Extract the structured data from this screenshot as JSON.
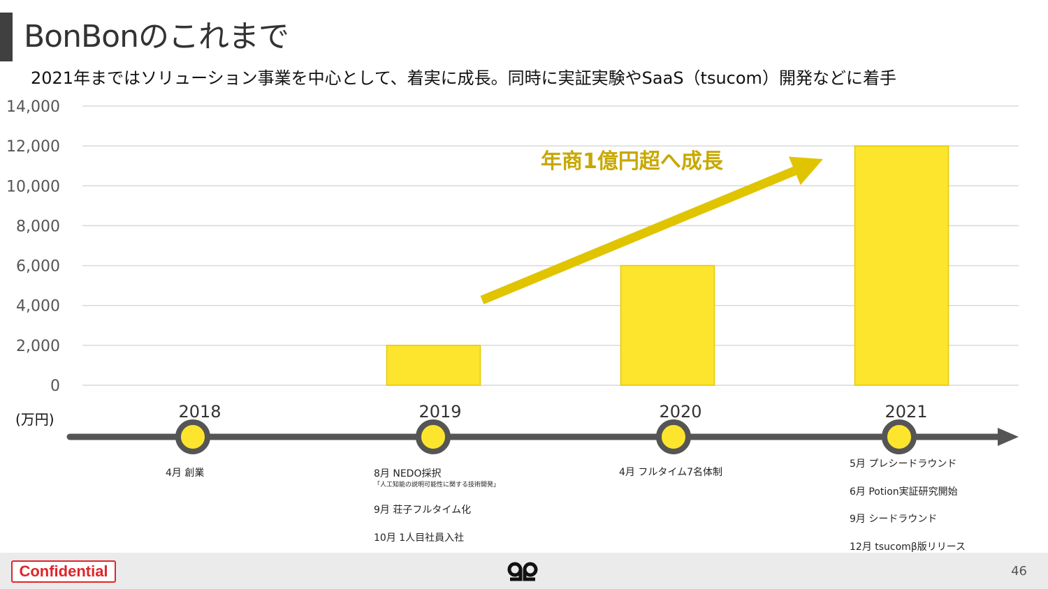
{
  "title": "BonBonのこれまで",
  "subtitle": "2021年まではソリューション事業を中心として、着実に成長。同時に実証実験やSaaS（tsucom）開発などに着手",
  "colors": {
    "bar": "#fde52e",
    "bar_stroke": "#e6c800",
    "arrow": "#e0c400",
    "annotation": "#c8a800",
    "timeline": "#555555",
    "grid": "#d9d9d9",
    "confidential": "#e0242a"
  },
  "chart_data": {
    "type": "bar",
    "categories": [
      "2018",
      "2019",
      "2020",
      "2021"
    ],
    "values": [
      0,
      2000,
      6000,
      12000
    ],
    "ylim": [
      0,
      14000
    ],
    "yticks": [
      "0",
      "2,000",
      "4,000",
      "6,000",
      "8,000",
      "10,000",
      "12,000",
      "14,000"
    ],
    "ylabel": "(万円)",
    "grid": true,
    "annotation": "年商1億円超へ成長"
  },
  "timeline": {
    "years": [
      "2018",
      "2019",
      "2020",
      "2021"
    ],
    "events": {
      "y2018": [
        "4月  創業"
      ],
      "y2019": [
        "8月 NEDO採択",
        "「人工知能の説明可能性に関する技術開発」",
        "9月 荘子フルタイム化",
        "10月 1人目社員入社"
      ],
      "y2020": [
        "4月 フルタイム7名体制"
      ],
      "y2021": [
        "5月 プレシードラウンド",
        "6月 Potion実証研究開始",
        "9月 シードラウンド",
        "12月 tsucomβ版リリース"
      ]
    }
  },
  "footer": {
    "confidential": "Confidential",
    "page": "46",
    "logo_icon": "bonbon-logo-icon"
  }
}
